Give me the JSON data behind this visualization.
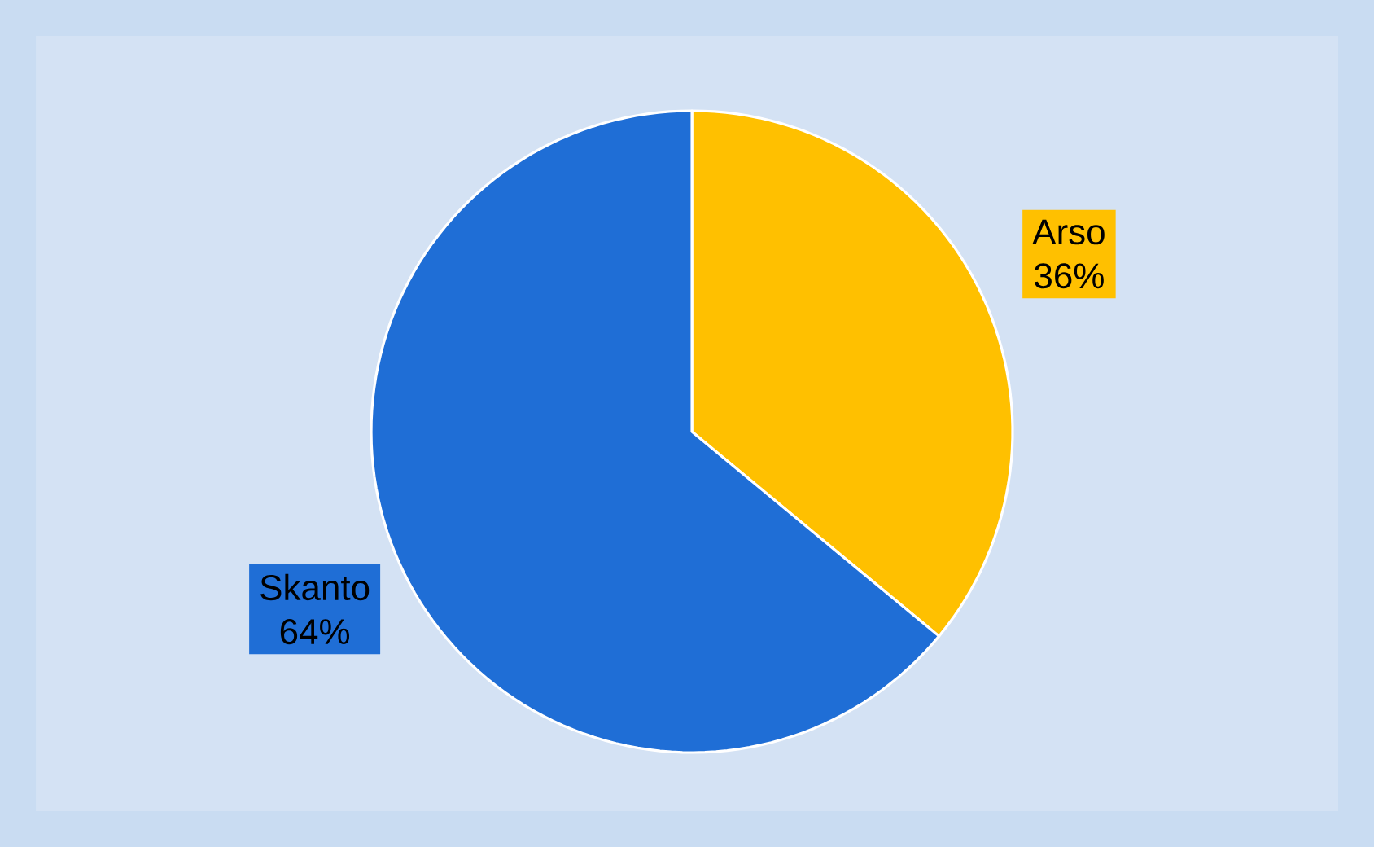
{
  "chart_data": {
    "type": "pie",
    "categories": [
      "Arso",
      "Skanto"
    ],
    "values": [
      36,
      64
    ],
    "colors": [
      "#ffc000",
      "#1f6ed6"
    ],
    "value_labels": [
      "36%",
      "64%"
    ]
  }
}
